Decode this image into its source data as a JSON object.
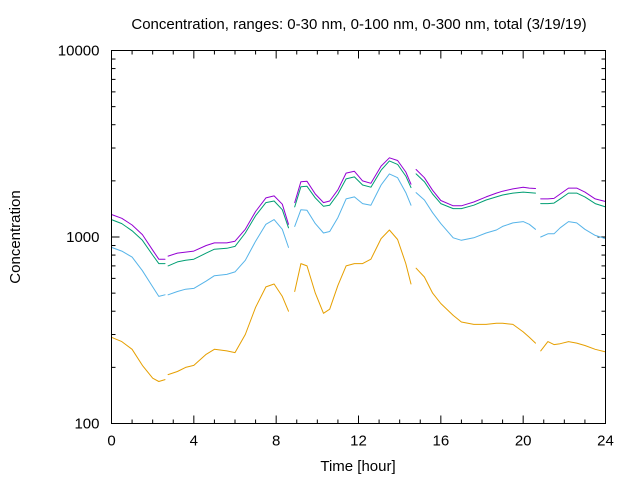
{
  "chart_data": {
    "type": "line",
    "title": "Concentration, ranges: 0-30 nm, 0-100 nm, 0-300 nm, total (3/19/19)",
    "xlabel": "Time [hour]",
    "ylabel": "Concentration",
    "xlim": [
      0,
      24
    ],
    "ylim": [
      100,
      10000
    ],
    "yscale": "log",
    "x_ticks": [
      0,
      4,
      8,
      12,
      16,
      20,
      24
    ],
    "x_tick_labels": [
      "0",
      "4",
      "8",
      "12",
      "16",
      "20",
      "24"
    ],
    "y_ticks": [
      100,
      1000,
      10000
    ],
    "y_tick_labels": [
      "100",
      "1000",
      "10000"
    ],
    "grid": false,
    "legend": "none",
    "series": [
      {
        "color": "#e69f00",
        "segments": [
          [
            [
              0,
              290
            ],
            [
              0.5,
              275
            ],
            [
              1,
              250
            ],
            [
              1.5,
              205
            ],
            [
              2,
              175
            ],
            [
              2.3,
              168
            ],
            [
              2.6,
              172
            ]
          ],
          [
            [
              2.75,
              183
            ],
            [
              3.2,
              190
            ],
            [
              3.6,
              200
            ],
            [
              4,
              205
            ],
            [
              4.6,
              235
            ],
            [
              5,
              250
            ],
            [
              5.6,
              245
            ],
            [
              6,
              240
            ],
            [
              6.5,
              300
            ],
            [
              7,
              420
            ],
            [
              7.5,
              540
            ],
            [
              7.9,
              560
            ],
            [
              8.3,
              480
            ],
            [
              8.6,
              400
            ]
          ],
          [
            [
              8.9,
              510
            ],
            [
              9.2,
              720
            ],
            [
              9.5,
              700
            ],
            [
              9.9,
              500
            ],
            [
              10.3,
              390
            ],
            [
              10.6,
              410
            ],
            [
              11,
              550
            ],
            [
              11.4,
              700
            ],
            [
              11.8,
              720
            ],
            [
              12.2,
              720
            ],
            [
              12.6,
              760
            ],
            [
              13.1,
              980
            ],
            [
              13.5,
              1090
            ],
            [
              13.9,
              970
            ],
            [
              14.3,
              720
            ],
            [
              14.55,
              560
            ]
          ],
          [
            [
              14.8,
              680
            ],
            [
              15.2,
              610
            ],
            [
              15.6,
              500
            ],
            [
              16,
              440
            ],
            [
              16.6,
              380
            ],
            [
              17,
              350
            ],
            [
              17.6,
              340
            ],
            [
              18.2,
              340
            ],
            [
              18.7,
              345
            ],
            [
              19,
              345
            ],
            [
              19.5,
              340
            ],
            [
              20,
              310
            ],
            [
              20.3,
              290
            ],
            [
              20.6,
              270
            ]
          ],
          [
            [
              20.85,
              245
            ],
            [
              21.2,
              275
            ],
            [
              21.5,
              265
            ],
            [
              21.8,
              268
            ],
            [
              22.2,
              275
            ],
            [
              22.6,
              270
            ],
            [
              23,
              262
            ],
            [
              23.5,
              250
            ],
            [
              24,
              242
            ]
          ]
        ]
      },
      {
        "color": "#56b4e9",
        "segments": [
          [
            [
              0,
              880
            ],
            [
              0.5,
              840
            ],
            [
              1,
              780
            ],
            [
              1.5,
              660
            ],
            [
              2,
              540
            ],
            [
              2.3,
              480
            ],
            [
              2.6,
              490
            ]
          ],
          [
            [
              2.75,
              490
            ],
            [
              3.2,
              510
            ],
            [
              3.6,
              525
            ],
            [
              4,
              530
            ],
            [
              4.6,
              580
            ],
            [
              5,
              620
            ],
            [
              5.6,
              630
            ],
            [
              6,
              650
            ],
            [
              6.5,
              750
            ],
            [
              7,
              950
            ],
            [
              7.5,
              1170
            ],
            [
              7.9,
              1240
            ],
            [
              8.3,
              1100
            ],
            [
              8.6,
              880
            ]
          ],
          [
            [
              8.9,
              1140
            ],
            [
              9.2,
              1400
            ],
            [
              9.5,
              1390
            ],
            [
              9.9,
              1180
            ],
            [
              10.3,
              1050
            ],
            [
              10.6,
              1070
            ],
            [
              11,
              1270
            ],
            [
              11.4,
              1600
            ],
            [
              11.8,
              1640
            ],
            [
              12.2,
              1510
            ],
            [
              12.6,
              1480
            ],
            [
              13.1,
              1900
            ],
            [
              13.5,
              2180
            ],
            [
              13.9,
              2080
            ],
            [
              14.3,
              1730
            ],
            [
              14.55,
              1480
            ]
          ],
          [
            [
              14.8,
              1730
            ],
            [
              15.2,
              1580
            ],
            [
              15.6,
              1350
            ],
            [
              16,
              1180
            ],
            [
              16.6,
              990
            ],
            [
              17,
              960
            ],
            [
              17.6,
              990
            ],
            [
              18.2,
              1050
            ],
            [
              18.7,
              1090
            ],
            [
              19,
              1140
            ],
            [
              19.5,
              1190
            ],
            [
              20,
              1210
            ],
            [
              20.3,
              1170
            ],
            [
              20.6,
              1100
            ]
          ],
          [
            [
              20.85,
              1000
            ],
            [
              21.2,
              1040
            ],
            [
              21.5,
              1040
            ],
            [
              21.8,
              1120
            ],
            [
              22.2,
              1210
            ],
            [
              22.6,
              1190
            ],
            [
              23,
              1100
            ],
            [
              23.5,
              1020
            ],
            [
              24,
              980
            ]
          ]
        ]
      },
      {
        "color": "#009e73",
        "segments": [
          [
            [
              0,
              1240
            ],
            [
              0.5,
              1180
            ],
            [
              1,
              1080
            ],
            [
              1.5,
              960
            ],
            [
              2,
              800
            ],
            [
              2.3,
              720
            ],
            [
              2.6,
              720
            ]
          ],
          [
            [
              2.75,
              700
            ],
            [
              3.2,
              735
            ],
            [
              3.6,
              750
            ],
            [
              4,
              760
            ],
            [
              4.6,
              820
            ],
            [
              5,
              860
            ],
            [
              5.6,
              870
            ],
            [
              6,
              890
            ],
            [
              6.5,
              1050
            ],
            [
              7,
              1300
            ],
            [
              7.5,
              1530
            ],
            [
              7.9,
              1560
            ],
            [
              8.3,
              1400
            ],
            [
              8.6,
              1120
            ]
          ],
          [
            [
              8.9,
              1450
            ],
            [
              9.2,
              1860
            ],
            [
              9.5,
              1870
            ],
            [
              9.9,
              1620
            ],
            [
              10.3,
              1460
            ],
            [
              10.6,
              1480
            ],
            [
              11,
              1700
            ],
            [
              11.4,
              2050
            ],
            [
              11.8,
              2100
            ],
            [
              12.2,
              1900
            ],
            [
              12.6,
              1850
            ],
            [
              13.1,
              2280
            ],
            [
              13.5,
              2560
            ],
            [
              13.9,
              2450
            ],
            [
              14.3,
              2120
            ],
            [
              14.55,
              1840
            ]
          ],
          [
            [
              14.8,
              2180
            ],
            [
              15.2,
              1980
            ],
            [
              15.6,
              1700
            ],
            [
              16,
              1510
            ],
            [
              16.6,
              1420
            ],
            [
              17,
              1420
            ],
            [
              17.6,
              1480
            ],
            [
              18.2,
              1580
            ],
            [
              18.7,
              1640
            ],
            [
              19,
              1680
            ],
            [
              19.5,
              1720
            ],
            [
              20,
              1740
            ],
            [
              20.3,
              1730
            ],
            [
              20.6,
              1720
            ]
          ],
          [
            [
              20.85,
              1510
            ],
            [
              21.2,
              1510
            ],
            [
              21.5,
              1520
            ],
            [
              21.8,
              1600
            ],
            [
              22.2,
              1720
            ],
            [
              22.6,
              1720
            ],
            [
              23,
              1640
            ],
            [
              23.5,
              1510
            ],
            [
              24,
              1450
            ]
          ]
        ]
      },
      {
        "color": "#9400d3",
        "segments": [
          [
            [
              0,
              1320
            ],
            [
              0.5,
              1260
            ],
            [
              1,
              1160
            ],
            [
              1.5,
              1030
            ],
            [
              2,
              850
            ],
            [
              2.3,
              760
            ],
            [
              2.6,
              760
            ]
          ],
          [
            [
              2.75,
              790
            ],
            [
              3.2,
              820
            ],
            [
              3.6,
              830
            ],
            [
              4,
              840
            ],
            [
              4.6,
              900
            ],
            [
              5,
              930
            ],
            [
              5.6,
              930
            ],
            [
              6,
              950
            ],
            [
              6.5,
              1100
            ],
            [
              7,
              1370
            ],
            [
              7.5,
              1620
            ],
            [
              7.9,
              1660
            ],
            [
              8.3,
              1500
            ],
            [
              8.6,
              1170
            ]
          ],
          [
            [
              8.9,
              1530
            ],
            [
              9.2,
              1980
            ],
            [
              9.5,
              1990
            ],
            [
              9.9,
              1700
            ],
            [
              10.3,
              1530
            ],
            [
              10.6,
              1560
            ],
            [
              11,
              1790
            ],
            [
              11.4,
              2200
            ],
            [
              11.8,
              2250
            ],
            [
              12.2,
              2000
            ],
            [
              12.6,
              1940
            ],
            [
              13.1,
              2400
            ],
            [
              13.5,
              2660
            ],
            [
              13.9,
              2570
            ],
            [
              14.3,
              2230
            ],
            [
              14.55,
              1920
            ]
          ],
          [
            [
              14.8,
              2300
            ],
            [
              15.2,
              2080
            ],
            [
              15.6,
              1780
            ],
            [
              16,
              1570
            ],
            [
              16.6,
              1470
            ],
            [
              17,
              1470
            ],
            [
              17.6,
              1540
            ],
            [
              18.2,
              1640
            ],
            [
              18.7,
              1720
            ],
            [
              19,
              1760
            ],
            [
              19.5,
              1810
            ],
            [
              20,
              1850
            ],
            [
              20.3,
              1830
            ],
            [
              20.6,
              1820
            ]
          ],
          [
            [
              20.85,
              1600
            ],
            [
              21.2,
              1600
            ],
            [
              21.5,
              1610
            ],
            [
              21.8,
              1700
            ],
            [
              22.2,
              1830
            ],
            [
              22.6,
              1830
            ],
            [
              23,
              1740
            ],
            [
              23.5,
              1600
            ],
            [
              24,
              1550
            ]
          ]
        ]
      }
    ]
  }
}
